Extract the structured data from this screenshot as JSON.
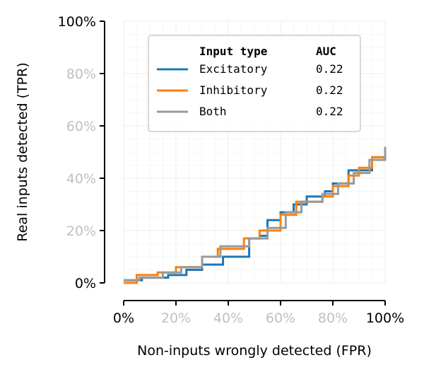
{
  "chart_data": {
    "type": "line",
    "xlabel": "Non-inputs wrongly detected (FPR)",
    "ylabel": "Real inputs detected (TPR)",
    "xlim": [
      0,
      1
    ],
    "ylim": [
      0,
      1
    ],
    "x_ticks": [
      {
        "value": 0,
        "label": "0%",
        "emphasis": true
      },
      {
        "value": 0.2,
        "label": "20%",
        "emphasis": false
      },
      {
        "value": 0.4,
        "label": "40%",
        "emphasis": false
      },
      {
        "value": 0.6,
        "label": "60%",
        "emphasis": false
      },
      {
        "value": 0.8,
        "label": "80%",
        "emphasis": false
      },
      {
        "value": 1,
        "label": "100%",
        "emphasis": true
      }
    ],
    "y_ticks": [
      {
        "value": 0,
        "label": "0%",
        "emphasis": true
      },
      {
        "value": 0.2,
        "label": "20%",
        "emphasis": false
      },
      {
        "value": 0.4,
        "label": "40%",
        "emphasis": false
      },
      {
        "value": 0.6,
        "label": "60%",
        "emphasis": false
      },
      {
        "value": 0.8,
        "label": "80%",
        "emphasis": false
      },
      {
        "value": 1,
        "label": "100%",
        "emphasis": true
      }
    ],
    "grid": true,
    "legend": {
      "placement": "top-right",
      "header_type": "Input type",
      "header_auc": "AUC"
    },
    "colors": {
      "emphasis_tick": "#000000",
      "muted_tick": "#c0c0c0",
      "grid": "#eeeeee"
    },
    "series": [
      {
        "name": "Excitatory",
        "auc": "0.22",
        "color": "#1f77b4",
        "x": [
          0,
          0.07,
          0.17,
          0.24,
          0.3,
          0.38,
          0.48,
          0.52,
          0.55,
          0.6,
          0.65,
          0.7,
          0.77,
          0.8,
          0.86,
          0.95,
          1.0
        ],
        "y": [
          0.01,
          0.02,
          0.03,
          0.05,
          0.07,
          0.1,
          0.17,
          0.18,
          0.24,
          0.27,
          0.3,
          0.33,
          0.35,
          0.38,
          0.43,
          0.48,
          0.52
        ]
      },
      {
        "name": "Inhibitory",
        "auc": "0.22",
        "color": "#ff7f0e",
        "x": [
          0,
          0.05,
          0.13,
          0.2,
          0.3,
          0.36,
          0.46,
          0.52,
          0.6,
          0.66,
          0.76,
          0.8,
          0.86,
          0.9,
          0.95,
          1.0
        ],
        "y": [
          0.0,
          0.03,
          0.04,
          0.06,
          0.1,
          0.13,
          0.17,
          0.2,
          0.26,
          0.31,
          0.33,
          0.37,
          0.41,
          0.44,
          0.48,
          0.52
        ]
      },
      {
        "name": "Both",
        "auc": "0.22",
        "color": "#999999",
        "x": [
          0,
          0.06,
          0.15,
          0.22,
          0.3,
          0.37,
          0.48,
          0.55,
          0.62,
          0.68,
          0.76,
          0.82,
          0.88,
          0.94,
          1.0
        ],
        "y": [
          0.01,
          0.02,
          0.04,
          0.06,
          0.1,
          0.14,
          0.17,
          0.21,
          0.27,
          0.31,
          0.34,
          0.38,
          0.42,
          0.47,
          0.52
        ]
      }
    ]
  }
}
